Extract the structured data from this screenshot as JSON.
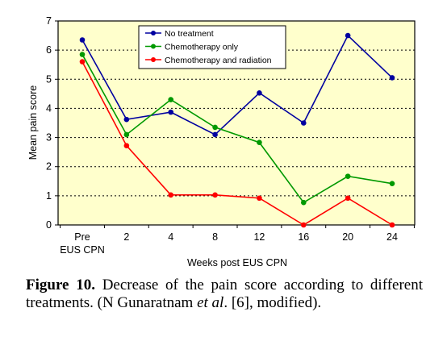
{
  "chart_data": {
    "type": "line",
    "categories": [
      "Pre\nEUS CPN",
      "2",
      "4",
      "8",
      "12",
      "16",
      "20",
      "24"
    ],
    "xlabel": "Weeks post EUS CPN",
    "ylabel": "Mean pain score",
    "ylim": [
      0,
      7
    ],
    "yticks": [
      0,
      1,
      2,
      3,
      4,
      5,
      6,
      7
    ],
    "grid": "horizontal dotted",
    "legend_position": "top-center",
    "background": "#FFFFCC",
    "series": [
      {
        "name": "No treatment",
        "color": "#0000A0",
        "values": [
          6.35,
          3.62,
          3.87,
          3.1,
          4.53,
          3.5,
          6.5,
          5.05
        ]
      },
      {
        "name": "Chemotherapy only",
        "color": "#009900",
        "values": [
          5.85,
          3.1,
          4.3,
          3.35,
          2.83,
          0.77,
          1.67,
          1.42
        ]
      },
      {
        "name": "Chemotherapy and radiation",
        "color": "#FF0000",
        "values": [
          5.6,
          2.72,
          1.03,
          1.03,
          0.92,
          0,
          0.92,
          0
        ]
      }
    ]
  },
  "caption": {
    "label": "Figure 10.",
    "text_before": " Decrease of the pain score according to different treatments. (N Gunaratnam ",
    "italic": "et al",
    "text_after": ". [6], modified)."
  }
}
